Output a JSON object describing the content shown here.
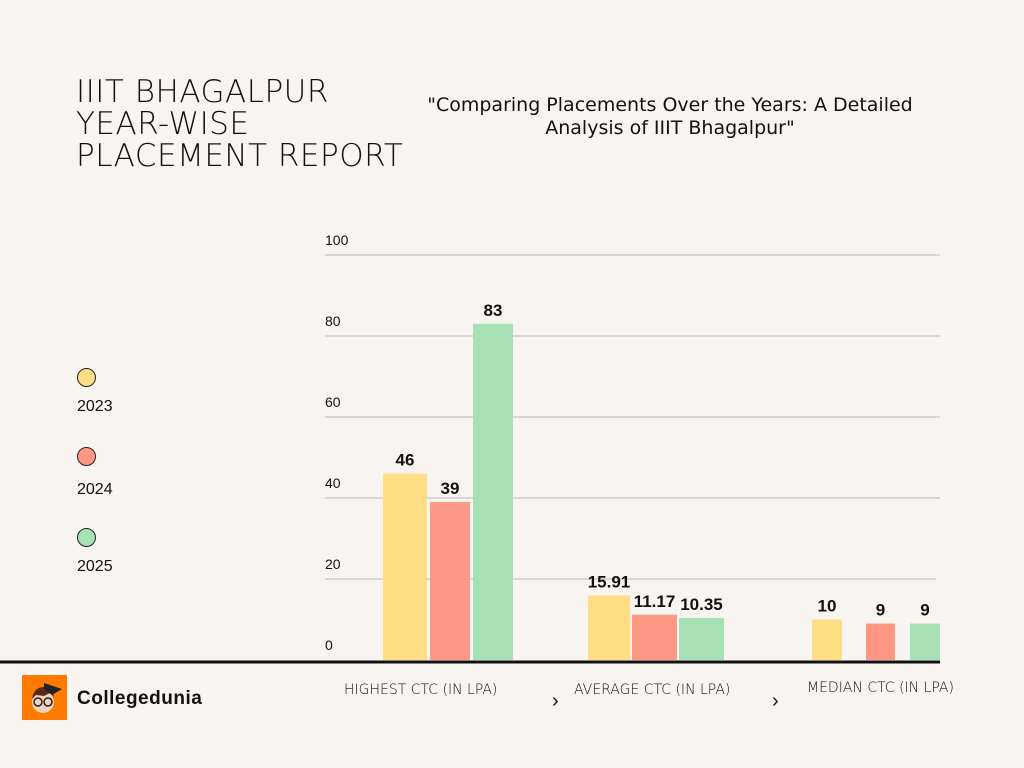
{
  "header": {
    "title": "IIIT BHAGALPUR\nYEAR-WISE\nPLACEMENT REPORT",
    "subtitle": "\"Comparing Placements Over the Years: A Detailed Analysis of IIIT Bhagalpur\""
  },
  "brand": {
    "name": "Collegedunia",
    "logo_color": "#FF7A00"
  },
  "chart_data": {
    "type": "bar",
    "title": "",
    "xlabel": "",
    "ylabel": "",
    "ylim": [
      0,
      100
    ],
    "yticks": [
      "0",
      "20",
      "40",
      "60",
      "80",
      "100"
    ],
    "grid": true,
    "legend_placement": "left",
    "categories": [
      "HIGHEST CTC (IN LPA)",
      "AVERAGE CTC (IN LPA)",
      "MEDIAN CTC (IN LPA)"
    ],
    "series": [
      {
        "name": "2023",
        "color": "#FFDE85",
        "values": [
          46,
          15.91,
          10
        ],
        "labels": [
          "46",
          "15.91",
          "10"
        ]
      },
      {
        "name": "2024",
        "color": "#FF9785",
        "values": [
          39,
          11.17,
          9
        ],
        "labels": [
          "39",
          "11.17",
          "9"
        ]
      },
      {
        "name": "2025",
        "color": "#A6E0B4",
        "values": [
          83,
          10.35,
          9
        ],
        "labels": [
          "83",
          "10.35",
          "9"
        ]
      }
    ]
  }
}
